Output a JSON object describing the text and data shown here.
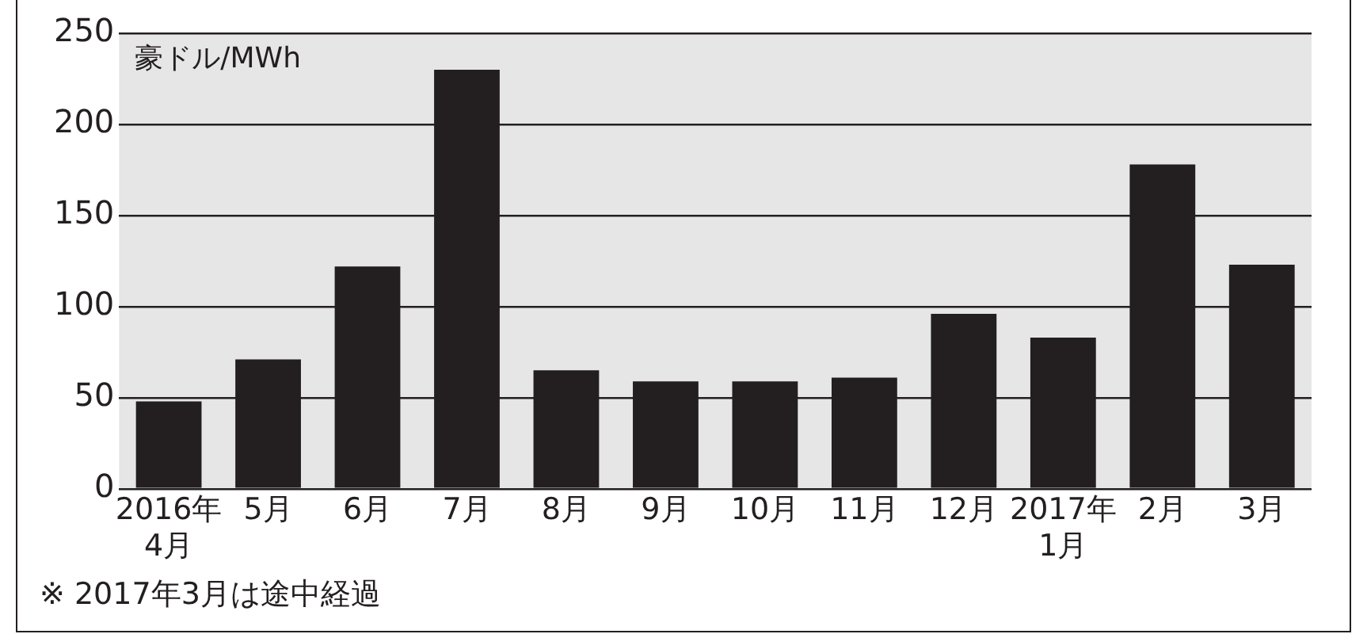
{
  "chart_data": {
    "type": "bar",
    "ylabel": "豪ドル/MWh",
    "categories": [
      "2016年\n4月",
      "5月",
      "6月",
      "7月",
      "8月",
      "9月",
      "10月",
      "11月",
      "12月",
      "2017年\n1月",
      "2月",
      "3月"
    ],
    "values": [
      48,
      71,
      122,
      230,
      65,
      59,
      59,
      61,
      96,
      83,
      178,
      123
    ],
    "color": "#231f20",
    "ylim": [
      0,
      250
    ],
    "yticks": [
      0,
      50,
      100,
      150,
      200,
      250
    ],
    "grid": "y",
    "annotations": [
      "※ 2017年3月は途中経過"
    ]
  }
}
